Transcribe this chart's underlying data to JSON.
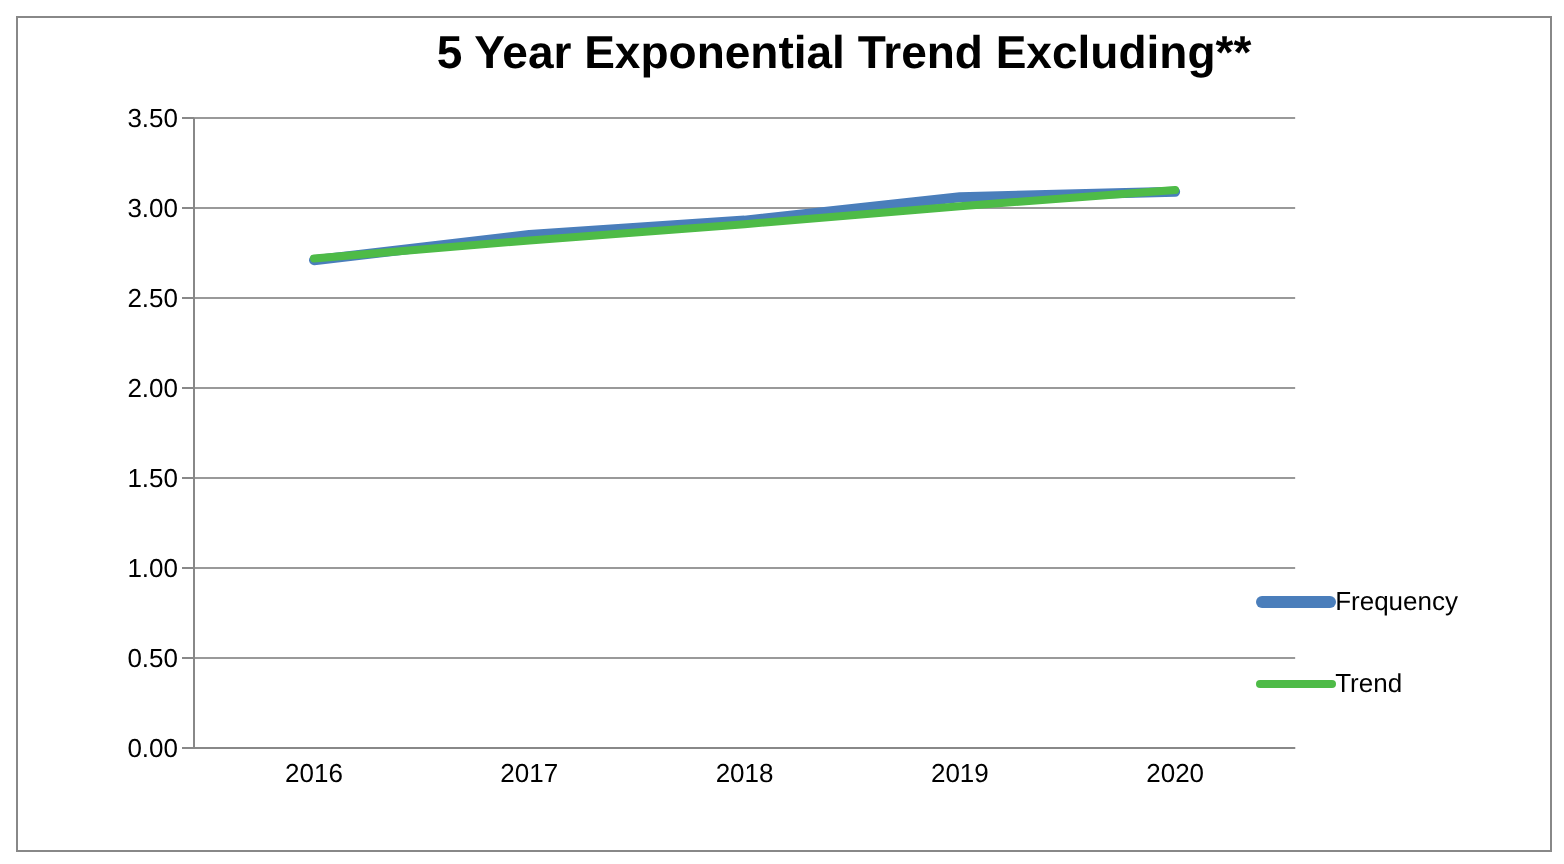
{
  "chart_data": {
    "type": "line",
    "title": "5 Year Exponential Trend Excluding**",
    "categories": [
      "2016",
      "2017",
      "2018",
      "2019",
      "2020"
    ],
    "series": [
      {
        "name": "Frequency",
        "color": "#4a7ebb",
        "values": [
          2.71,
          2.85,
          2.93,
          3.06,
          3.09
        ]
      },
      {
        "name": "Trend",
        "color": "#4ebb47",
        "values": [
          2.72,
          2.82,
          2.91,
          3.01,
          3.1
        ]
      }
    ],
    "ylim": [
      0,
      3.5
    ],
    "yticks": [
      {
        "value": 0,
        "label": "0.00"
      },
      {
        "value": 0.5,
        "label": "0.50"
      },
      {
        "value": 1,
        "label": "1.00"
      },
      {
        "value": 1.5,
        "label": "1.50"
      },
      {
        "value": 2,
        "label": "2.00"
      },
      {
        "value": 2.5,
        "label": "2.50"
      },
      {
        "value": 3,
        "label": "3.00"
      },
      {
        "value": 3.5,
        "label": "3.50"
      }
    ],
    "grid": "y",
    "legend": "bottom right",
    "marker": "none",
    "line_style": "solid"
  }
}
